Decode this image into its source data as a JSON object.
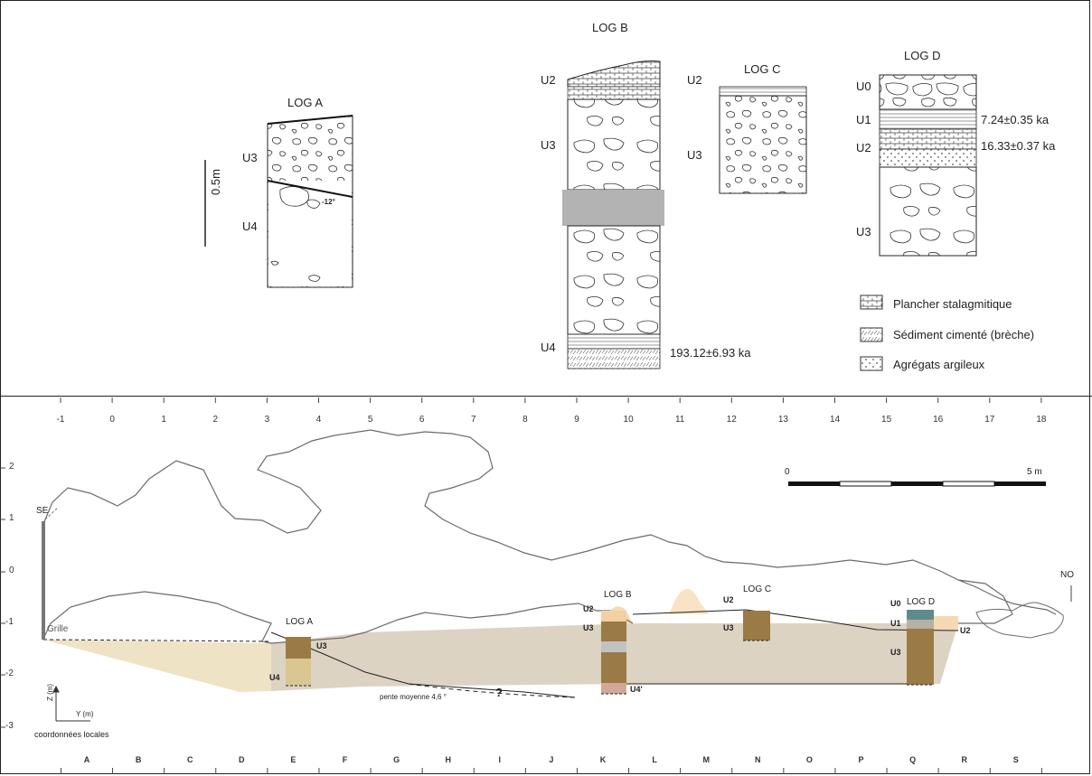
{
  "top": {
    "logs": {
      "a": {
        "title": "LOG A",
        "units": [
          "U3",
          "U4"
        ],
        "angle": "-12°"
      },
      "b": {
        "title": "LOG B",
        "units": [
          "U2",
          "U3",
          "U4"
        ],
        "date": "193.12±6.93 ka"
      },
      "c": {
        "title": "LOG C",
        "units": [
          "U2",
          "U3"
        ]
      },
      "d": {
        "title": "LOG D",
        "units": [
          "U0",
          "U1",
          "U2",
          "U3"
        ],
        "dates": [
          "7.24±0.35 ka",
          "16.33±0.37 ka"
        ]
      }
    },
    "scale_label": "0.5m",
    "legend": [
      {
        "label": "Plancher stalagmitique",
        "icon": "stalagmite-floor-pattern"
      },
      {
        "label": "Sédiment cimenté (brèche)",
        "icon": "cemented-sediment-pattern"
      },
      {
        "label": "Agrégats argileux",
        "icon": "clay-aggregates-pattern"
      }
    ]
  },
  "section": {
    "x_ticks": [
      "-1",
      "0",
      "1",
      "2",
      "3",
      "4",
      "5",
      "6",
      "7",
      "8",
      "9",
      "10",
      "11",
      "12",
      "13",
      "14",
      "15",
      "16",
      "17",
      "18"
    ],
    "z_ticks": [
      "2",
      "1",
      "0",
      "-1",
      "-2",
      "-3"
    ],
    "grid_letters": [
      "A",
      "B",
      "C",
      "D",
      "E",
      "F",
      "G",
      "H",
      "I",
      "J",
      "K",
      "L",
      "M",
      "N",
      "O",
      "P",
      "Q",
      "R",
      "S"
    ],
    "orientation": {
      "left": "SE",
      "right": "NO"
    },
    "grille_label": "Grille",
    "scalebar": {
      "start": "0",
      "end": "5 m"
    },
    "slope_label": "pente moyenne 4,6 °",
    "question_mark": "?",
    "axes": {
      "z": "Z (m)",
      "y": "Y (m)",
      "caption": "coordonnées locales"
    },
    "logs": {
      "a": {
        "title": "LOG A",
        "units": [
          "U3",
          "U4"
        ]
      },
      "b": {
        "title": "LOG B",
        "units": [
          "U2",
          "U3",
          "U4'"
        ]
      },
      "c": {
        "title": "LOG C",
        "units": [
          "U2",
          "U3"
        ]
      },
      "d": {
        "title": "LOG D",
        "units": [
          "U0",
          "U1",
          "U2",
          "U3"
        ]
      }
    },
    "colors": {
      "fill_light": "#eee3c4",
      "fill_grey": "#ddd3c3",
      "log_brown": "#9a7a45",
      "log_dark": "#7a5a30",
      "log_teal": "#5f8a8c",
      "log_pink": "#d4a898",
      "orange": "#f5d9b3"
    }
  }
}
